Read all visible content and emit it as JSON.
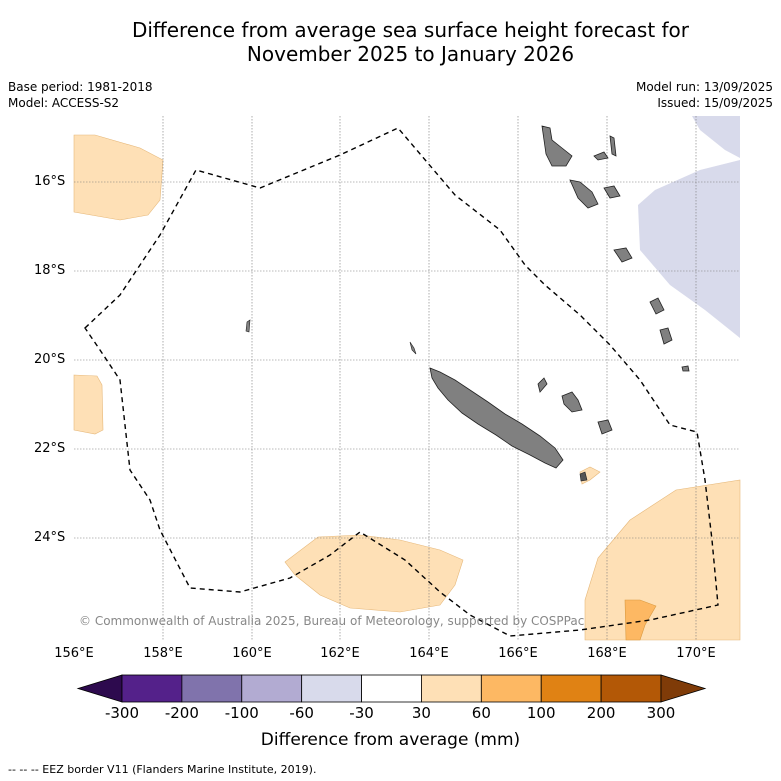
{
  "title_line1": "Difference from average sea surface height forecast for",
  "title_line2": "November 2025 to January 2026",
  "meta_left": {
    "base_period": "Base period: 1981-2018",
    "model": "Model: ACCESS-S2"
  },
  "meta_right": {
    "model_run": "Model run: 13/09/2025",
    "issued": "Issued: 15/09/2025"
  },
  "lat_labels": [
    "16°S",
    "18°S",
    "20°S",
    "22°S",
    "24°S"
  ],
  "lon_labels": [
    "156°E",
    "158°E",
    "160°E",
    "162°E",
    "164°E",
    "166°E",
    "168°E",
    "170°E"
  ],
  "copyright": "© Commonwealth of Australia 2025, Bureau of Meteorology, supported by COSPPac",
  "colorbar": {
    "labels": [
      "-300",
      "-200",
      "-100",
      "-60",
      "-30",
      "30",
      "60",
      "100",
      "200",
      "300"
    ],
    "colors": [
      "#2d0a4e",
      "#54218a",
      "#8073ac",
      "#b2abd2",
      "#d8daeb",
      "#ffffff",
      "#fee0b6",
      "#fdb863",
      "#e08214",
      "#b35806",
      "#7f3b08"
    ],
    "title": "Difference from average (mm)"
  },
  "footer": "-- -- -- EEZ border V11 (Flanders Marine Institute, 2019).",
  "map_colors": {
    "land": "#808080",
    "positive_light": "#fee0b6",
    "positive_mid": "#fdb863",
    "negative_light": "#d8daeb"
  }
}
